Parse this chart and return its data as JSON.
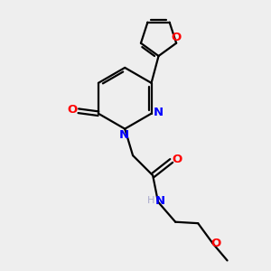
{
  "bg_color": "#eeeeee",
  "bond_color": "#000000",
  "N_color": "#0000ff",
  "O_color": "#ff0000",
  "line_width": 1.6,
  "fig_size": [
    3.0,
    3.0
  ],
  "dpi": 100,
  "xlim": [
    0,
    10
  ],
  "ylim": [
    0,
    10
  ]
}
